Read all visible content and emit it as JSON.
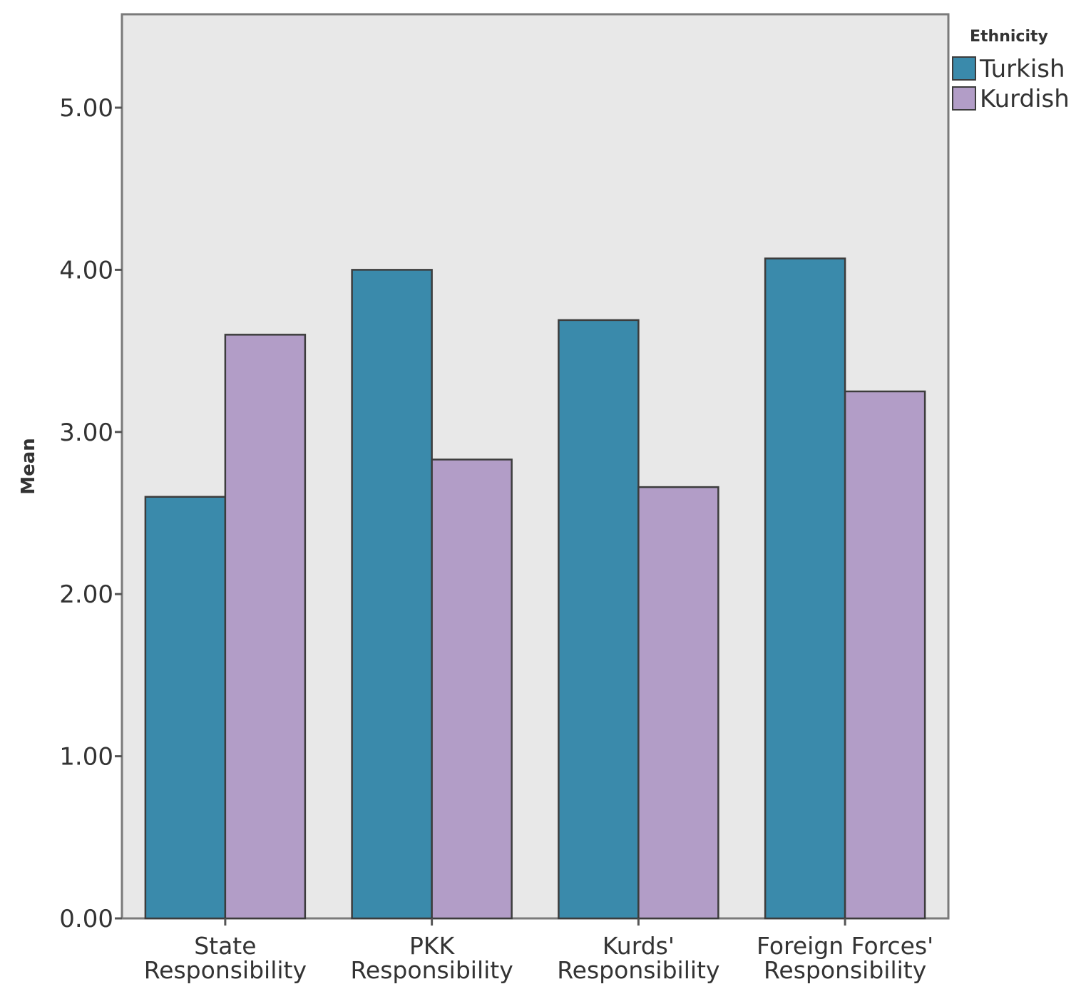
{
  "chart_data": {
    "type": "bar",
    "categories": [
      [
        "State",
        "Responsibility"
      ],
      [
        "PKK",
        "Responsibility"
      ],
      [
        "Kurds'",
        "Responsibility"
      ],
      [
        "Foreign Forces'",
        "Responsibility"
      ]
    ],
    "series": [
      {
        "name": "Turkish",
        "color": "#3a8aab",
        "values": [
          2.6,
          4.0,
          3.69,
          4.07
        ]
      },
      {
        "name": "Kurdish",
        "color": "#b29dc7",
        "values": [
          3.6,
          2.83,
          2.66,
          3.25
        ]
      }
    ],
    "ylabel": "Mean",
    "xlabel": "",
    "ylim": [
      0,
      5.6
    ],
    "yticks": [
      "0.00",
      "1.00",
      "2.00",
      "3.00",
      "4.00",
      "5.00"
    ],
    "legend": {
      "title": "Ethnicity",
      "placement": "top-right outside"
    },
    "plot_background": "#e8e8e8",
    "grid": false
  }
}
